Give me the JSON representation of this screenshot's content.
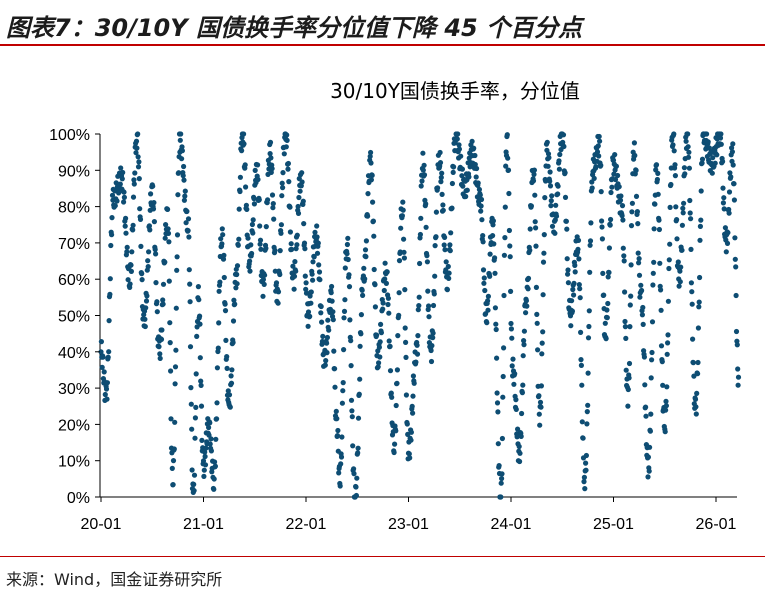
{
  "figure": {
    "title": "图表7：30/10Y 国债换手率分位值下降 45 个百分点",
    "source": "来源：Wind，国金证券研究所"
  },
  "colors": {
    "series": "#0e4d73",
    "title_rule": "#c00000"
  },
  "chart_data": {
    "type": "scatter",
    "title": "30/10Y国债换手率，分位值",
    "xlabel": "",
    "ylabel": "",
    "ylim": [
      0,
      100
    ],
    "y_ticks": [
      0,
      10,
      20,
      30,
      40,
      50,
      60,
      70,
      80,
      90,
      100
    ],
    "y_tick_labels": [
      "0%",
      "10%",
      "20%",
      "30%",
      "40%",
      "50%",
      "60%",
      "70%",
      "80%",
      "90%",
      "100%"
    ],
    "x_ticks": [
      0,
      1,
      2,
      3,
      4,
      5,
      6
    ],
    "x_tick_labels": [
      "20-01",
      "21-01",
      "22-01",
      "23-01",
      "24-01",
      "25-01",
      "26-01"
    ],
    "xlim_years": [
      0,
      6.25
    ],
    "marker": "circle",
    "series": [
      {
        "name": "",
        "description_of_pattern": "daily percentile values oscillating in swings",
        "anchors": [
          {
            "x": 0.0,
            "y": 40
          },
          {
            "x": 0.05,
            "y": 28
          },
          {
            "x": 0.12,
            "y": 82
          },
          {
            "x": 0.2,
            "y": 88
          },
          {
            "x": 0.28,
            "y": 60
          },
          {
            "x": 0.35,
            "y": 99
          },
          {
            "x": 0.42,
            "y": 48
          },
          {
            "x": 0.5,
            "y": 84
          },
          {
            "x": 0.57,
            "y": 40
          },
          {
            "x": 0.65,
            "y": 78
          },
          {
            "x": 0.7,
            "y": 5
          },
          {
            "x": 0.77,
            "y": 98
          },
          {
            "x": 0.85,
            "y": 75
          },
          {
            "x": 0.9,
            "y": 0
          },
          {
            "x": 0.95,
            "y": 55
          },
          {
            "x": 1.0,
            "y": 8
          },
          {
            "x": 1.05,
            "y": 20
          },
          {
            "x": 1.1,
            "y": 5
          },
          {
            "x": 1.18,
            "y": 72
          },
          {
            "x": 1.25,
            "y": 25
          },
          {
            "x": 1.32,
            "y": 60
          },
          {
            "x": 1.38,
            "y": 100
          },
          {
            "x": 1.45,
            "y": 65
          },
          {
            "x": 1.52,
            "y": 90
          },
          {
            "x": 1.58,
            "y": 58
          },
          {
            "x": 1.65,
            "y": 95
          },
          {
            "x": 1.72,
            "y": 55
          },
          {
            "x": 1.8,
            "y": 100
          },
          {
            "x": 1.88,
            "y": 60
          },
          {
            "x": 1.95,
            "y": 88
          },
          {
            "x": 2.02,
            "y": 50
          },
          {
            "x": 2.1,
            "y": 72
          },
          {
            "x": 2.18,
            "y": 38
          },
          {
            "x": 2.25,
            "y": 55
          },
          {
            "x": 2.3,
            "y": 20
          },
          {
            "x": 2.33,
            "y": 5
          },
          {
            "x": 2.4,
            "y": 70
          },
          {
            "x": 2.48,
            "y": 0
          },
          {
            "x": 2.56,
            "y": 60
          },
          {
            "x": 2.63,
            "y": 92
          },
          {
            "x": 2.7,
            "y": 38
          },
          {
            "x": 2.78,
            "y": 62
          },
          {
            "x": 2.86,
            "y": 15
          },
          {
            "x": 2.94,
            "y": 80
          },
          {
            "x": 3.0,
            "y": 12
          },
          {
            "x": 3.08,
            "y": 40
          },
          {
            "x": 3.14,
            "y": 92
          },
          {
            "x": 3.22,
            "y": 40
          },
          {
            "x": 3.3,
            "y": 93
          },
          {
            "x": 3.38,
            "y": 60
          },
          {
            "x": 3.46,
            "y": 99
          },
          {
            "x": 3.55,
            "y": 85
          },
          {
            "x": 3.62,
            "y": 95
          },
          {
            "x": 3.7,
            "y": 82
          },
          {
            "x": 3.76,
            "y": 50
          },
          {
            "x": 3.82,
            "y": 75
          },
          {
            "x": 3.9,
            "y": 0
          },
          {
            "x": 3.96,
            "y": 98
          },
          {
            "x": 4.02,
            "y": 35
          },
          {
            "x": 4.08,
            "y": 12
          },
          {
            "x": 4.15,
            "y": 55
          },
          {
            "x": 4.22,
            "y": 90
          },
          {
            "x": 4.28,
            "y": 22
          },
          {
            "x": 4.35,
            "y": 95
          },
          {
            "x": 4.42,
            "y": 75
          },
          {
            "x": 4.5,
            "y": 100
          },
          {
            "x": 4.58,
            "y": 50
          },
          {
            "x": 4.65,
            "y": 70
          },
          {
            "x": 4.72,
            "y": 5
          },
          {
            "x": 4.8,
            "y": 90
          },
          {
            "x": 4.86,
            "y": 97
          },
          {
            "x": 4.92,
            "y": 45
          },
          {
            "x": 5.0,
            "y": 92
          },
          {
            "x": 5.08,
            "y": 80
          },
          {
            "x": 5.14,
            "y": 28
          },
          {
            "x": 5.2,
            "y": 95
          },
          {
            "x": 5.27,
            "y": 55
          },
          {
            "x": 5.34,
            "y": 8
          },
          {
            "x": 5.42,
            "y": 90
          },
          {
            "x": 5.5,
            "y": 20
          },
          {
            "x": 5.58,
            "y": 100
          },
          {
            "x": 5.64,
            "y": 60
          },
          {
            "x": 5.72,
            "y": 100
          },
          {
            "x": 5.8,
            "y": 24
          },
          {
            "x": 5.88,
            "y": 100
          },
          {
            "x": 5.96,
            "y": 92
          },
          {
            "x": 6.04,
            "y": 100
          },
          {
            "x": 6.1,
            "y": 70
          },
          {
            "x": 6.16,
            "y": 95
          },
          {
            "x": 6.22,
            "y": 33
          }
        ]
      }
    ]
  }
}
